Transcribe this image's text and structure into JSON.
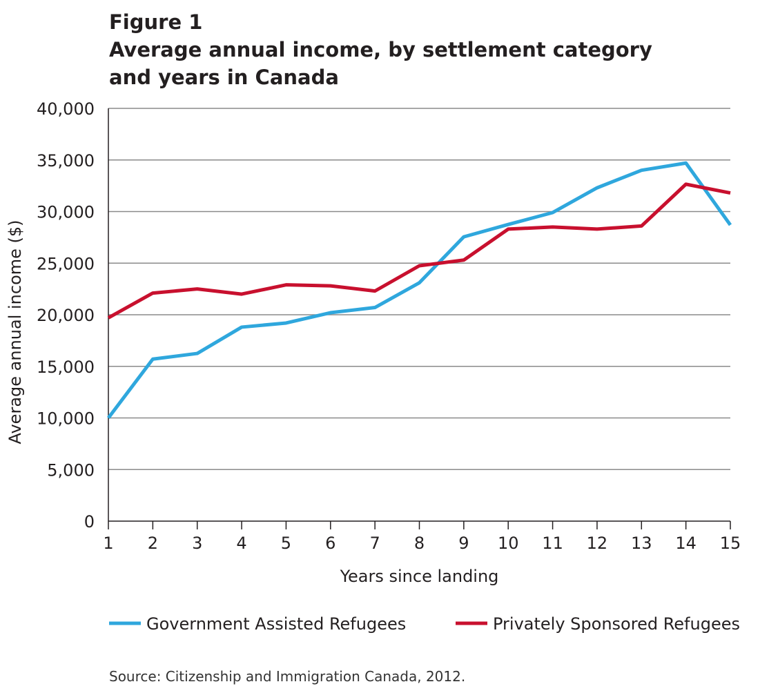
{
  "figure_label": "Figure 1",
  "title_line1": "Average annual income, by settlement category",
  "title_line2": "and years in Canada",
  "source": "Source: Citizenship and Immigration Canada, 2012.",
  "chart_data": {
    "type": "line",
    "title": "Average annual income, by settlement category and years in Canada",
    "xlabel": "Years since landing",
    "ylabel": "Average annual income ($)",
    "x": [
      1,
      2,
      3,
      4,
      5,
      6,
      7,
      8,
      9,
      10,
      11,
      12,
      13,
      14,
      15
    ],
    "ylim": [
      0,
      40000
    ],
    "yticks": [
      0,
      5000,
      10000,
      15000,
      20000,
      25000,
      30000,
      35000,
      40000
    ],
    "ytick_labels": [
      "0",
      "5,000",
      "10,000",
      "15,000",
      "20,000",
      "25,000",
      "30,000",
      "35,000",
      "40,000"
    ],
    "grid": true,
    "legend_position": "bottom",
    "series": [
      {
        "name": "Government Assisted Refugees",
        "color": "#2fa7dd",
        "values": [
          10000,
          15700,
          16250,
          18800,
          19200,
          20200,
          20700,
          23100,
          27550,
          28750,
          29900,
          32300,
          34000,
          34700,
          28700
        ]
      },
      {
        "name": "Privately Sponsored Refugees",
        "color": "#c8102e",
        "values": [
          19700,
          22100,
          22500,
          22000,
          22900,
          22800,
          22300,
          24750,
          25300,
          28300,
          28500,
          28300,
          28600,
          32650,
          31800
        ]
      }
    ]
  }
}
